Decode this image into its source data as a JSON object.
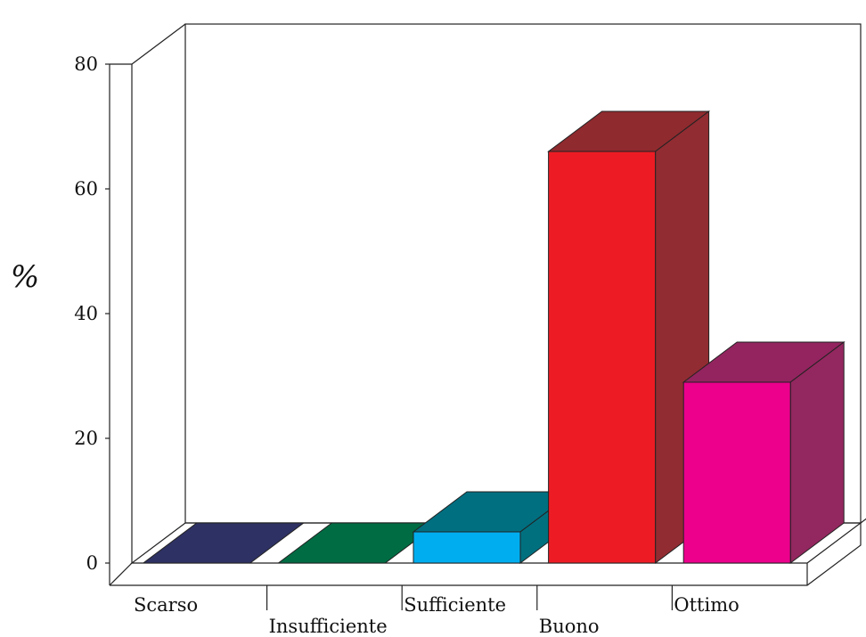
{
  "chart_data": {
    "type": "bar",
    "categories": [
      "Scarso",
      "Insufficiente",
      "Sufficiente",
      "Buono",
      "Ottimo"
    ],
    "values": [
      0,
      0,
      5,
      66,
      29
    ],
    "ylabel": "%",
    "ylim": [
      0,
      80
    ],
    "yticks": [
      0,
      20,
      40,
      60,
      80
    ],
    "grid": false,
    "legend": "none",
    "style": "3d",
    "colors": [
      {
        "front": "#2e3163",
        "top": "#2e3163",
        "side": "#2e3163"
      },
      {
        "front": "#006c44",
        "top": "#006c44",
        "side": "#006c44"
      },
      {
        "front": "#00aeef",
        "top": "#006f80",
        "side": "#00707f"
      },
      {
        "front": "#ed1c24",
        "top": "#8f2a2e",
        "side": "#912c32"
      },
      {
        "front": "#ec008c",
        "top": "#93245f",
        "side": "#93275f"
      }
    ]
  }
}
